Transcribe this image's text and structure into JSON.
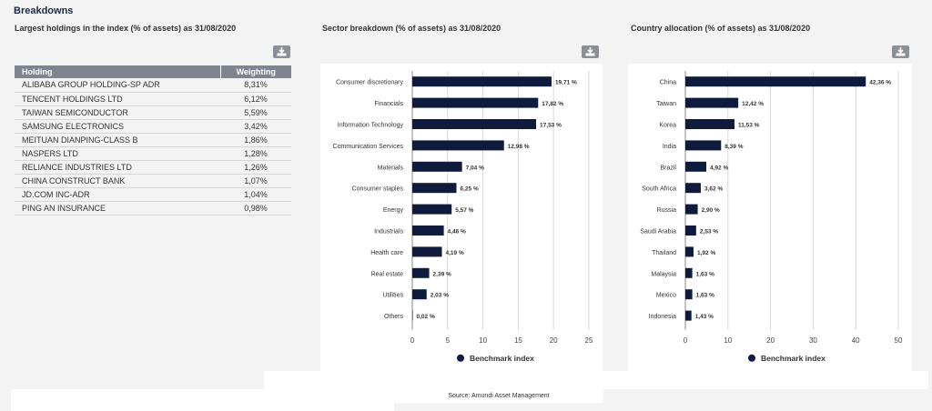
{
  "page": {
    "title": "Breakdowns"
  },
  "holdings": {
    "title": "Largest holdings in the index (% of assets) as 31/08/2020",
    "columns": [
      "Holding",
      "Weighting"
    ],
    "rows": [
      [
        "ALIBABA GROUP HOLDING-SP ADR",
        "8,31%"
      ],
      [
        "TENCENT HOLDINGS LTD",
        "6,12%"
      ],
      [
        "TAIWAN SEMICONDUCTOR",
        "5,59%"
      ],
      [
        "SAMSUNG ELECTRONICS",
        "3,42%"
      ],
      [
        "MEITUAN DIANPING-CLASS B",
        "1,86%"
      ],
      [
        "NASPERS LTD",
        "1,28%"
      ],
      [
        "RELIANCE INDUSTRIES LTD",
        "1,26%"
      ],
      [
        "CHINA CONSTRUCT BANK",
        "1,07%"
      ],
      [
        "JD.COM INC-ADR",
        "1,04%"
      ],
      [
        "PING AN INSURANCE",
        "0,98%"
      ]
    ],
    "download_icon": "download-icon"
  },
  "chart_data": [
    {
      "type": "bar",
      "orientation": "horizontal",
      "title": "Sector breakdown (% of assets) as 31/08/2020",
      "categories": [
        "Consumer discretionary",
        "Financials",
        "Information Technology",
        "Communication Services",
        "Materials",
        "Consumer staples",
        "Energy",
        "Industrials",
        "Health care",
        "Real estate",
        "Utilities",
        "Others"
      ],
      "values": [
        19.71,
        17.82,
        17.53,
        12.98,
        7.04,
        6.25,
        5.57,
        4.46,
        4.19,
        2.39,
        2.03,
        0.02
      ],
      "value_labels": [
        "19,71 %",
        "17,82 %",
        "17,53 %",
        "12,98 %",
        "7,04 %",
        "6,25 %",
        "5,57 %",
        "4,46 %",
        "4,19 %",
        "2,39 %",
        "2,03 %",
        "0,02 %"
      ],
      "xlim": [
        0,
        25
      ],
      "xticks": [
        "0",
        "5",
        "10",
        "15",
        "20",
        "25"
      ],
      "grid": true,
      "legend": "Benchmark index",
      "legend_position": "bottom",
      "color": "#0f1b3d"
    },
    {
      "type": "bar",
      "orientation": "horizontal",
      "title": "Country allocation (% of assets) as 31/08/2020",
      "categories": [
        "China",
        "Taiwan",
        "Korea",
        "India",
        "Brazil",
        "South Africa",
        "Russia",
        "Saudi Arabia",
        "Thailand",
        "Malaysia",
        "Mexico",
        "Indonesia"
      ],
      "values": [
        42.36,
        12.42,
        11.53,
        8.39,
        4.92,
        3.62,
        2.9,
        2.53,
        1.92,
        1.63,
        1.63,
        1.43
      ],
      "value_labels": [
        "42,36 %",
        "12,42 %",
        "11,53 %",
        "8,39 %",
        "4,92 %",
        "3,62 %",
        "2,90 %",
        "2,53 %",
        "1,92 %",
        "1,63 %",
        "1,63 %",
        "1,43 %"
      ],
      "xlim": [
        0,
        50
      ],
      "xticks": [
        "0",
        "10",
        "20",
        "30",
        "40",
        "50"
      ],
      "grid": true,
      "legend": "Benchmark index",
      "legend_position": "bottom",
      "color": "#0f1b3d"
    }
  ],
  "source": "Source: Amundi Asset Management"
}
